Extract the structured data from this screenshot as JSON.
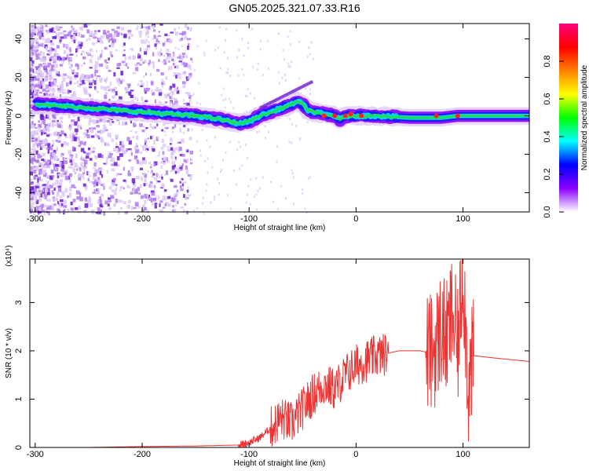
{
  "page": {
    "title": "GN05.2025.321.07.33.R16"
  },
  "chart_data": [
    {
      "type": "heatmap",
      "title": "GN05.2025.321.07.33.R16",
      "xlabel": "Height of straight line (km)",
      "ylabel": "Frequency (Hz)",
      "xlim": [
        -305,
        162
      ],
      "ylim": [
        -50,
        48
      ],
      "xticks": [
        -300,
        -200,
        -100,
        0,
        100
      ],
      "yticks": [
        -40,
        -20,
        0,
        20,
        40
      ],
      "colorbar": {
        "label": "Normalized spectral amplitude",
        "range": [
          0,
          1
        ],
        "ticks": [
          0.0,
          0.2,
          0.4,
          0.6,
          0.8
        ],
        "colormap": [
          "#ffffff",
          "#8a00ff",
          "#0000ff",
          "#00ffff",
          "#00ff00",
          "#ffff00",
          "#ff8000",
          "#ff0000",
          "#ff0080"
        ]
      },
      "ridge": {
        "x": [
          -300,
          -270,
          -250,
          -225,
          -200,
          -175,
          -150,
          -125,
          -110,
          -100,
          -90,
          -80,
          -70,
          -60,
          -55,
          -50,
          -45,
          -40,
          -30,
          -20,
          -15,
          -10,
          0,
          20,
          50,
          80,
          95,
          100,
          130,
          162
        ],
        "y": [
          6,
          5,
          4,
          3,
          2,
          1,
          0,
          -2,
          -4,
          -3,
          0,
          2,
          4,
          6,
          8,
          6,
          3,
          2,
          1,
          0,
          -2,
          0,
          0,
          0,
          -1,
          -1,
          0,
          0,
          0,
          0
        ]
      }
    },
    {
      "type": "line",
      "title": "",
      "xlabel": "Height of straight line (km)",
      "ylabel": "SNR (10 * v/v)",
      "yscale_label": "(x10⁴)",
      "xlim": [
        -305,
        162
      ],
      "ylim": [
        0,
        3.9
      ],
      "xticks": [
        -300,
        -200,
        -100,
        0,
        100
      ],
      "yticks": [
        0,
        1,
        2,
        3
      ],
      "color": "#ee3333",
      "x": [
        -305,
        -250,
        -200,
        -150,
        -110,
        -100,
        -90,
        -80,
        -70,
        -60,
        -50,
        -40,
        -30,
        -20,
        -10,
        0,
        10,
        20,
        30,
        40,
        50,
        60,
        70,
        75,
        80,
        85,
        90,
        95,
        100,
        105,
        110,
        130,
        162
      ],
      "y": [
        0.0,
        0.0,
        0.02,
        0.03,
        0.05,
        0.1,
        0.2,
        0.4,
        0.6,
        0.5,
        0.8,
        1.1,
        1.3,
        1.2,
        1.5,
        1.7,
        1.8,
        1.9,
        1.95,
        2.0,
        2.0,
        2.0,
        1.95,
        2.1,
        2.5,
        2.2,
        2.8,
        2.0,
        3.8,
        1.2,
        1.9,
        1.85,
        1.78
      ]
    }
  ]
}
